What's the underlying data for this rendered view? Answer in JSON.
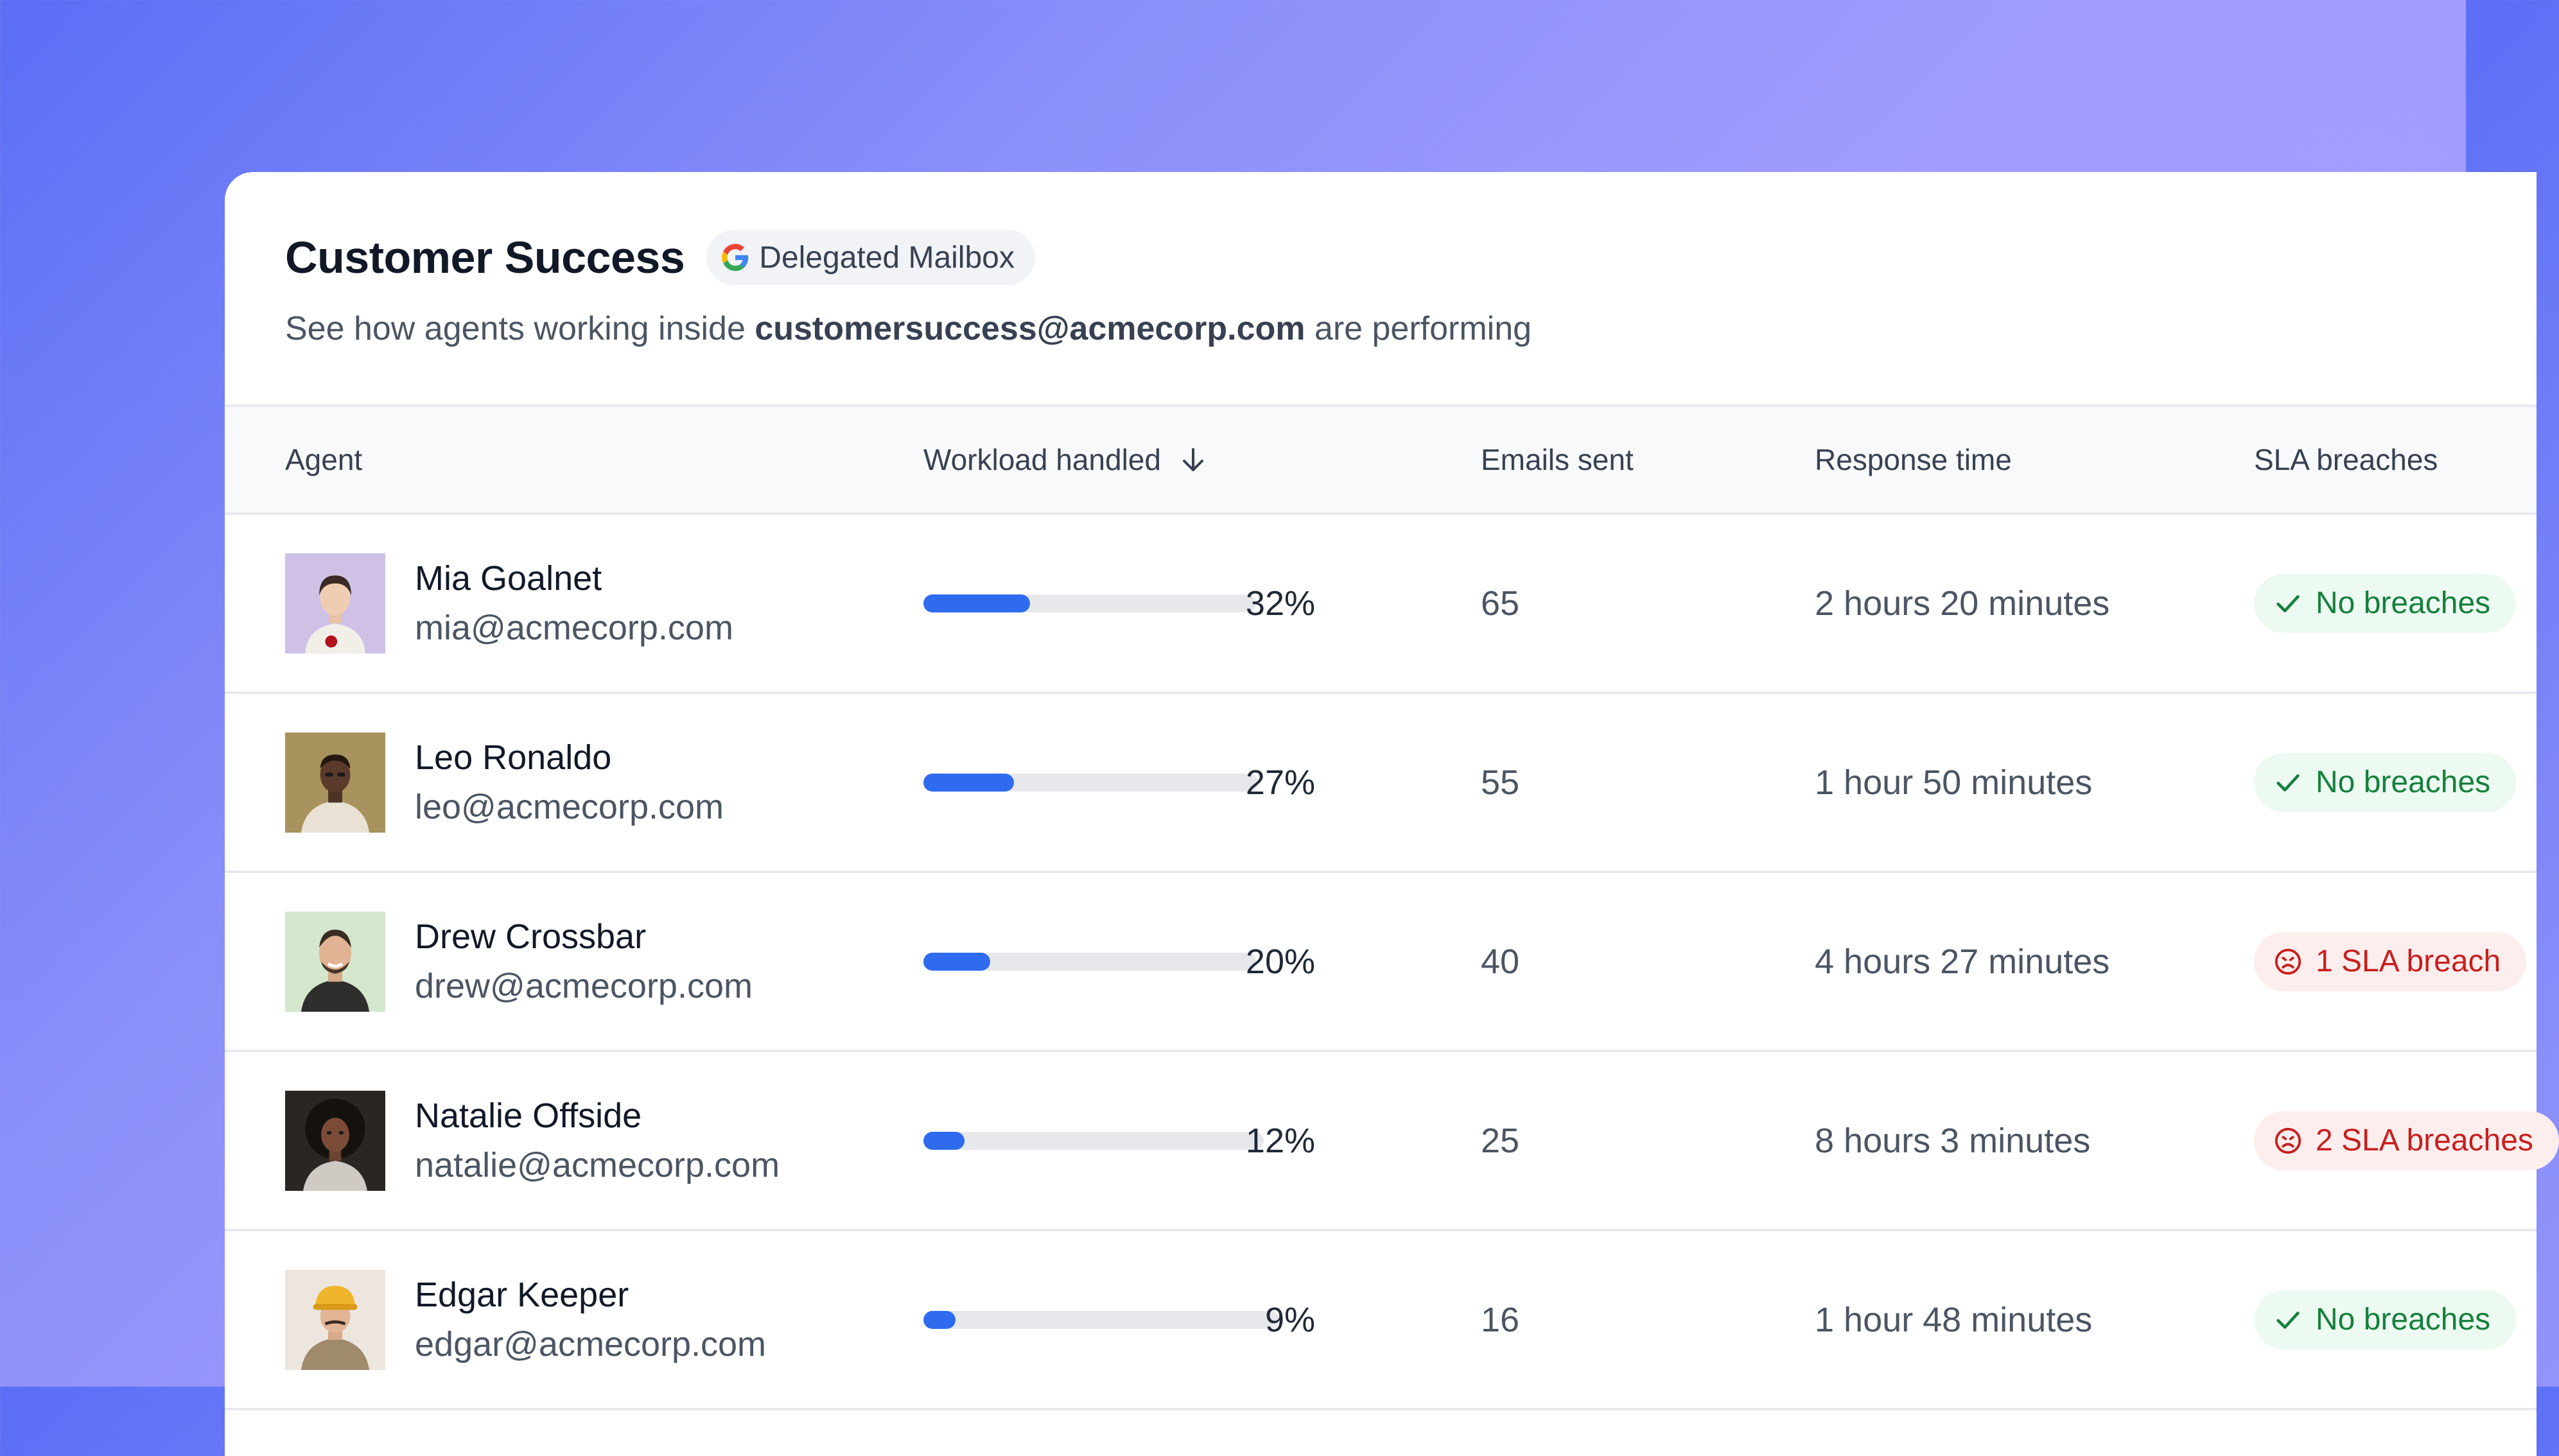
{
  "header": {
    "title": "Customer Success",
    "badge_label": "Delegated Mailbox",
    "subtitle_prefix": "See how agents working inside ",
    "subtitle_email": "customersuccess@acmecorp.com",
    "subtitle_suffix": " are performing"
  },
  "columns": {
    "agent": "Agent",
    "workload": "Workload handled",
    "emails": "Emails sent",
    "response": "Response time",
    "sla": "SLA breaches"
  },
  "colors": {
    "accent": "#2f6bef",
    "sla_good": "#15803d",
    "sla_bad": "#c81e1e"
  },
  "rows": [
    {
      "name": "Mia Goalnet",
      "email": "mia@acmecorp.com",
      "workload_pct": 32,
      "workload_label": "32%",
      "emails_sent": "65",
      "response_time": "2 hours 20 minutes",
      "sla_status": "good",
      "sla_label": "No breaches",
      "sla_icon": "check-icon"
    },
    {
      "name": "Leo Ronaldo",
      "email": "leo@acmecorp.com",
      "workload_pct": 27,
      "workload_label": "27%",
      "emails_sent": "55",
      "response_time": "1 hour 50 minutes",
      "sla_status": "good",
      "sla_label": "No breaches",
      "sla_icon": "check-icon"
    },
    {
      "name": "Drew Crossbar",
      "email": "drew@acmecorp.com",
      "workload_pct": 20,
      "workload_label": "20%",
      "emails_sent": "40",
      "response_time": "4 hours 27 minutes",
      "sla_status": "bad",
      "sla_label": "1 SLA breach",
      "sla_icon": "sad-face-icon"
    },
    {
      "name": "Natalie Offside",
      "email": "natalie@acmecorp.com",
      "workload_pct": 12,
      "workload_label": "12%",
      "emails_sent": "25",
      "response_time": "8 hours 3 minutes",
      "sla_status": "bad",
      "sla_label": "2 SLA breaches",
      "sla_icon": "sad-face-icon"
    },
    {
      "name": "Edgar Keeper",
      "email": "edgar@acmecorp.com",
      "workload_pct": 9,
      "workload_label": "9%",
      "emails_sent": "16",
      "response_time": "1 hour 48 minutes",
      "sla_status": "good",
      "sla_label": "No breaches",
      "sla_icon": "check-icon"
    }
  ]
}
